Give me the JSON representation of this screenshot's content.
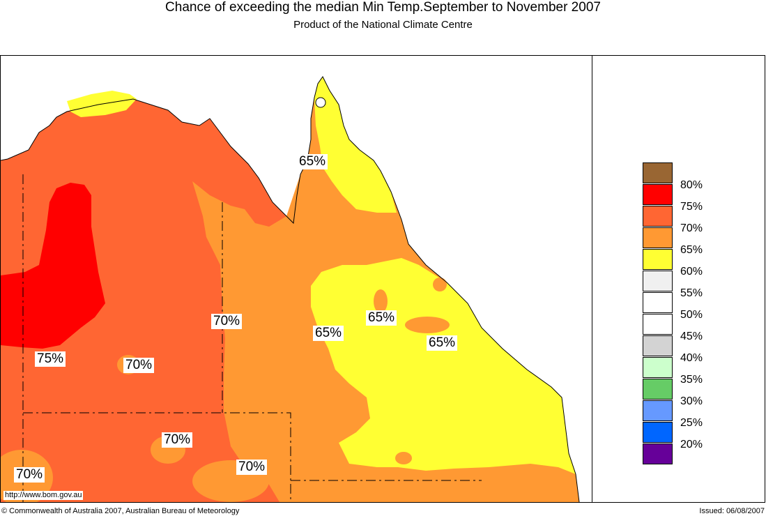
{
  "title": "Chance of exceeding the median Min Temp.September to November 2007",
  "subtitle": "Product of the National Climate Centre",
  "colors": {
    "red_75": "#ff0000",
    "orange_70": "#ff6633",
    "orange_65": "#ff9933",
    "yellow_60": "#ffff33",
    "ocean": "#ffffff"
  },
  "legend": {
    "items": [
      {
        "label": "80%",
        "color": "#996633"
      },
      {
        "label": "75%",
        "color": "#ff0000"
      },
      {
        "label": "70%",
        "color": "#ff6633"
      },
      {
        "label": "65%",
        "color": "#ff9933"
      },
      {
        "label": "60%",
        "color": "#ffff33"
      },
      {
        "label": "55%",
        "color": "#f0f0f0"
      },
      {
        "label": "50%",
        "color": "#ffffff"
      },
      {
        "label": "45%",
        "color": "#ffffff"
      },
      {
        "label": "40%",
        "color": "#d3d3d3"
      },
      {
        "label": "35%",
        "color": "#ccffcc"
      },
      {
        "label": "30%",
        "color": "#66cc66"
      },
      {
        "label": "25%",
        "color": "#6699ff"
      },
      {
        "label": "20%",
        "color": "#0066ff"
      },
      {
        "label": "",
        "color": "#660099"
      }
    ]
  },
  "map_labels": {
    "cape_york": "65%",
    "central_qld_left": "65%",
    "central_qld_mid": "65%",
    "central_qld_right": "65%",
    "nt_east": "70%",
    "nt_center": "70%",
    "nt_west": "75%",
    "nt_south": "70%",
    "sa_north": "70%",
    "far_southwest": "70%"
  },
  "url": "http://www.bom.gov.au",
  "footer": {
    "copyright": "© Commonwealth of Australia 2007, Australian Bureau of Meteorology",
    "issued": "Issued: 06/08/2007"
  }
}
